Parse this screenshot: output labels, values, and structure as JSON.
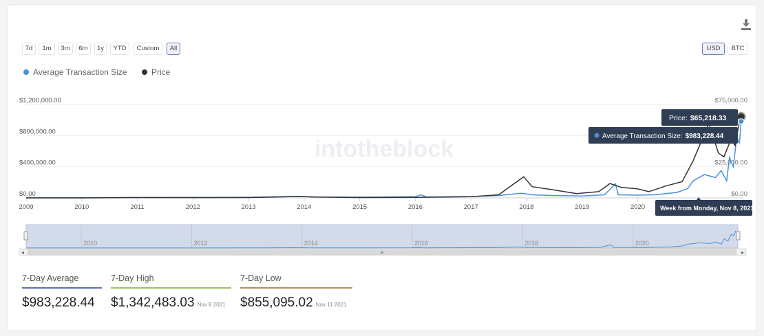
{
  "ranges": [
    "7d",
    "1m",
    "3m",
    "6m",
    "1y",
    "YTD",
    "Custom",
    "All"
  ],
  "active_range": "All",
  "currencies": [
    "USD",
    "BTC"
  ],
  "active_currency": "USD",
  "legend": [
    {
      "label": "Average Transaction Size",
      "color": "#4a8fd8"
    },
    {
      "label": "Price",
      "color": "#333333"
    }
  ],
  "watermark": "intotheblock",
  "tooltip": {
    "price_label": "Price:",
    "price_value": "$65,218.33",
    "ats_label": "Average Transaction Size:",
    "ats_value": "$983,228.44",
    "week": "Week from Monday, Nov 8, 2021"
  },
  "navigator_years": [
    "2010",
    "2012",
    "2014",
    "2016",
    "2018",
    "2020"
  ],
  "stats": [
    {
      "label": "7-Day Average",
      "value": "$983,228.44",
      "date": "",
      "color": "#5a6fb0"
    },
    {
      "label": "7-Day High",
      "value": "$1,342,483.03",
      "date": "Nov 8 2021",
      "color": "#9ac450"
    },
    {
      "label": "7-Day Low",
      "value": "$855,095.02",
      "date": "Nov 11 2021",
      "color": "#b88a5a"
    }
  ],
  "chart_data": {
    "type": "line",
    "x_ticks": [
      "2009",
      "2010",
      "2011",
      "2012",
      "2013",
      "2014",
      "2015",
      "2016",
      "2017",
      "2018",
      "2019",
      "2020"
    ],
    "y_left_ticks": [
      "$0.00",
      "$400,000.00",
      "$800,000.00",
      "$1,200,000.00"
    ],
    "y_left_range": [
      0,
      1200000
    ],
    "y_right_ticks": [
      "$0.00",
      "$25,000.00",
      "$75,000.00"
    ],
    "y_right_range": [
      0,
      75000
    ],
    "series": [
      {
        "name": "Average Transaction Size",
        "axis": "left",
        "color": "#4a8fd8",
        "points": [
          [
            2009.0,
            2000
          ],
          [
            2010.0,
            3000
          ],
          [
            2011.0,
            4000
          ],
          [
            2012.0,
            5000
          ],
          [
            2013.0,
            8000
          ],
          [
            2013.9,
            20000
          ],
          [
            2014.2,
            12000
          ],
          [
            2015.0,
            10000
          ],
          [
            2016.0,
            15000
          ],
          [
            2016.1,
            40000
          ],
          [
            2016.2,
            12000
          ],
          [
            2017.0,
            18000
          ],
          [
            2017.5,
            30000
          ],
          [
            2017.9,
            60000
          ],
          [
            2018.1,
            40000
          ],
          [
            2018.5,
            30000
          ],
          [
            2019.0,
            25000
          ],
          [
            2019.4,
            40000
          ],
          [
            2019.6,
            180000
          ],
          [
            2019.65,
            40000
          ],
          [
            2020.0,
            35000
          ],
          [
            2020.3,
            40000
          ],
          [
            2020.7,
            70000
          ],
          [
            2020.9,
            120000
          ],
          [
            2021.0,
            220000
          ],
          [
            2021.2,
            300000
          ],
          [
            2021.4,
            260000
          ],
          [
            2021.5,
            350000
          ],
          [
            2021.6,
            220000
          ],
          [
            2021.65,
            520000
          ],
          [
            2021.72,
            400000
          ],
          [
            2021.78,
            780000
          ],
          [
            2021.83,
            700000
          ],
          [
            2021.86,
            983228
          ]
        ]
      },
      {
        "name": "Price",
        "axis": "right",
        "color": "#333333",
        "points": [
          [
            2009.0,
            0
          ],
          [
            2010.0,
            0
          ],
          [
            2011.0,
            300
          ],
          [
            2012.0,
            200
          ],
          [
            2013.0,
            300
          ],
          [
            2013.9,
            1100
          ],
          [
            2014.2,
            700
          ],
          [
            2015.0,
            300
          ],
          [
            2016.0,
            400
          ],
          [
            2017.0,
            1000
          ],
          [
            2017.5,
            2500
          ],
          [
            2017.95,
            17000
          ],
          [
            2018.1,
            9000
          ],
          [
            2018.4,
            7000
          ],
          [
            2018.9,
            3500
          ],
          [
            2019.3,
            5000
          ],
          [
            2019.5,
            11500
          ],
          [
            2019.7,
            8500
          ],
          [
            2020.0,
            7200
          ],
          [
            2020.2,
            5000
          ],
          [
            2020.5,
            9500
          ],
          [
            2020.8,
            13000
          ],
          [
            2021.0,
            30000
          ],
          [
            2021.28,
            60000
          ],
          [
            2021.45,
            36000
          ],
          [
            2021.55,
            33000
          ],
          [
            2021.68,
            47000
          ],
          [
            2021.75,
            42000
          ],
          [
            2021.83,
            61000
          ],
          [
            2021.86,
            65218
          ]
        ]
      }
    ]
  }
}
